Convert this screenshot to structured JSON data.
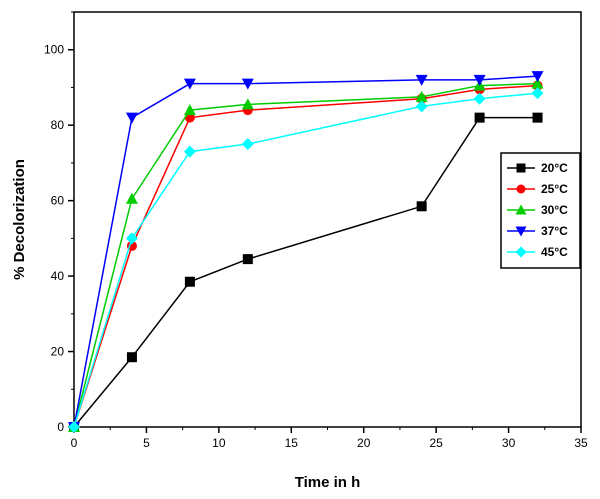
{
  "chart_data": {
    "type": "line",
    "title": "",
    "xlabel": "Time in h",
    "ylabel": "% Decolorization",
    "xlim": [
      0,
      35
    ],
    "ylim": [
      0,
      110
    ],
    "xticks": [
      0,
      5,
      10,
      15,
      20,
      25,
      30,
      35
    ],
    "yticks": [
      0,
      20,
      40,
      60,
      80,
      100
    ],
    "grid": false,
    "legend": "right",
    "series": [
      {
        "name": "20°C",
        "color": "#000000",
        "marker": "square",
        "x": [
          0,
          4,
          8,
          12,
          24,
          28,
          32
        ],
        "y": [
          0,
          18.5,
          38.5,
          44.5,
          58.5,
          82,
          82
        ]
      },
      {
        "name": "25°C",
        "color": "#ff0000",
        "marker": "circle",
        "x": [
          0,
          4,
          8,
          12,
          24,
          28,
          32
        ],
        "y": [
          0,
          48,
          82,
          84,
          87,
          89.5,
          90.5
        ]
      },
      {
        "name": "30°C",
        "color": "#00cc00",
        "marker": "triangle-up",
        "x": [
          0,
          4,
          8,
          12,
          24,
          28,
          32
        ],
        "y": [
          0,
          60.5,
          84,
          85.5,
          87.5,
          90.5,
          91
        ]
      },
      {
        "name": "37°C",
        "color": "#0000ff",
        "marker": "triangle-down",
        "x": [
          0,
          4,
          8,
          12,
          24,
          28,
          32
        ],
        "y": [
          0,
          82,
          91,
          91,
          92,
          92,
          93
        ]
      },
      {
        "name": "45°C",
        "color": "#00ffff",
        "marker": "diamond",
        "x": [
          0,
          4,
          8,
          12,
          24,
          28,
          32
        ],
        "y": [
          0,
          50,
          73,
          75,
          85,
          87,
          88.5
        ]
      }
    ]
  }
}
